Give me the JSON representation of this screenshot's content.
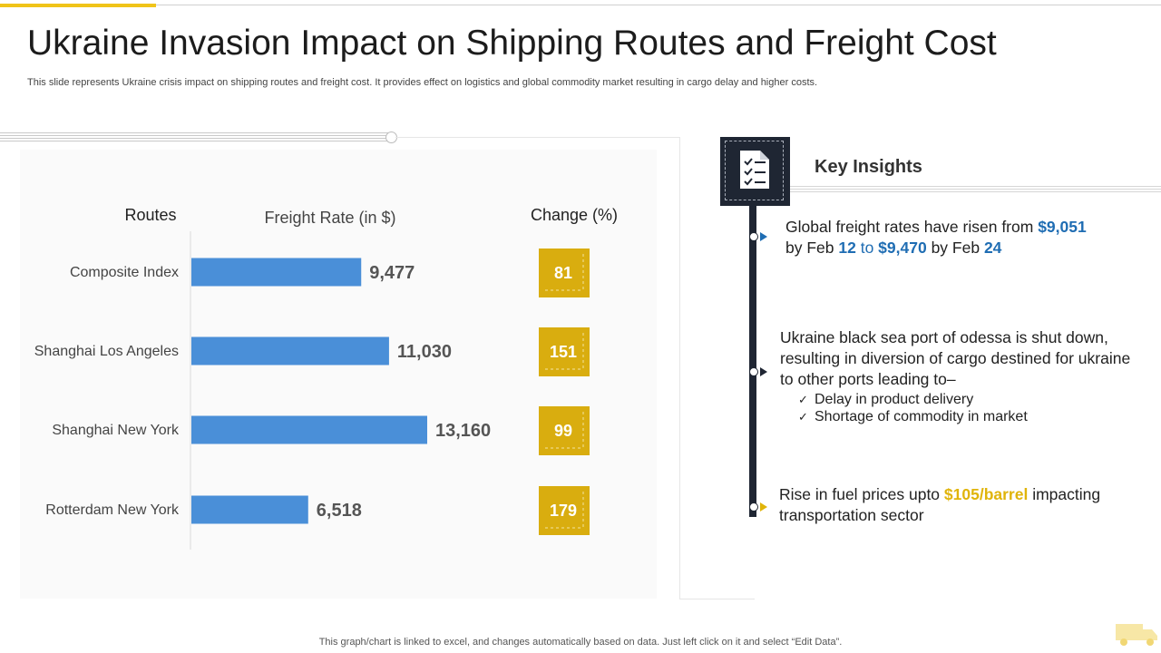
{
  "header": {
    "title": "Ukraine Invasion Impact on Shipping Routes and Freight Cost",
    "subtitle": "This slide represents Ukraine crisis impact on shipping routes and freight cost. It provides effect on logistics and global commodity market resulting in cargo delay and higher costs."
  },
  "chart_data": {
    "type": "bar",
    "orientation": "horizontal",
    "category_header": "Routes",
    "value_header": "Freight Rate (in $)",
    "change_header": "Change (%)",
    "categories": [
      "Composite Index",
      "Shanghai Los Angeles",
      "Shanghai New York",
      "Rotterdam New York"
    ],
    "values": [
      9477,
      11030,
      13160,
      6518
    ],
    "value_labels": [
      "9,477",
      "11,030",
      "13,160",
      "6,518"
    ],
    "change": [
      "81",
      "151",
      "99",
      "179"
    ],
    "bar_color": "#4a8fd8",
    "change_color": "#d9ad0f"
  },
  "insights": {
    "title": "Key Insights",
    "item1": {
      "text_a": "Global freight rates have risen from ",
      "value_a": "$9,051",
      "text_b": "by Feb ",
      "date_a": "12",
      "text_c": " to ",
      "value_b": "$9,470",
      "text_d": " by Feb ",
      "date_b": "24"
    },
    "item2": {
      "text": "Ukraine black sea port of odessa is shut down, resulting in diversion of cargo destined for ukraine to other ports leading to–",
      "bullets": [
        "Delay in product delivery",
        "Shortage of commodity in market"
      ]
    },
    "item3": {
      "text_a": "Rise in fuel prices upto ",
      "value": "$105/barrel",
      "text_b": " impacting transportation sector"
    }
  },
  "footer": {
    "note": "This graph/chart is linked to excel,  and changes automatically based on data. Just left click on it and select “Edit Data”."
  },
  "icons": [
    "checklist-document-icon",
    "delivery-truck-icon"
  ],
  "colors": {
    "accent": "#f0c419",
    "dark": "#1f2633",
    "blue": "#1f6db3",
    "gold": "#e0b40a"
  }
}
